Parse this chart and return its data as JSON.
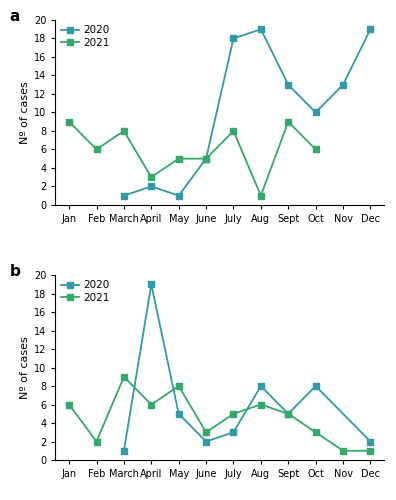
{
  "months": [
    "Jan",
    "Feb",
    "March",
    "April",
    "May",
    "June",
    "July",
    "Aug",
    "Sept",
    "Oct",
    "Nov",
    "Dec"
  ],
  "panel_a": {
    "y2020": [
      null,
      null,
      1,
      2,
      1,
      5,
      18,
      19,
      13,
      10,
      13,
      19
    ],
    "y2021": [
      9,
      6,
      8,
      3,
      5,
      5,
      8,
      1,
      9,
      6,
      null,
      null
    ]
  },
  "panel_b": {
    "y2020": [
      null,
      null,
      1,
      19,
      5,
      2,
      3,
      8,
      5,
      8,
      null,
      2
    ],
    "y2021": [
      6,
      2,
      9,
      6,
      8,
      3,
      5,
      6,
      5,
      3,
      1,
      1
    ]
  },
  "color_2020": "#3199A8",
  "color_2021": "#35A86A",
  "ylabel": "Nº of cases",
  "ylim": [
    0,
    20
  ],
  "yticks": [
    0,
    2,
    4,
    6,
    8,
    10,
    12,
    14,
    16,
    18,
    20
  ],
  "legend_2020": "2020",
  "legend_2021": "2021",
  "label_a": "a",
  "label_b": "b",
  "marker": "s",
  "markersize": 4,
  "linewidth": 1.3
}
